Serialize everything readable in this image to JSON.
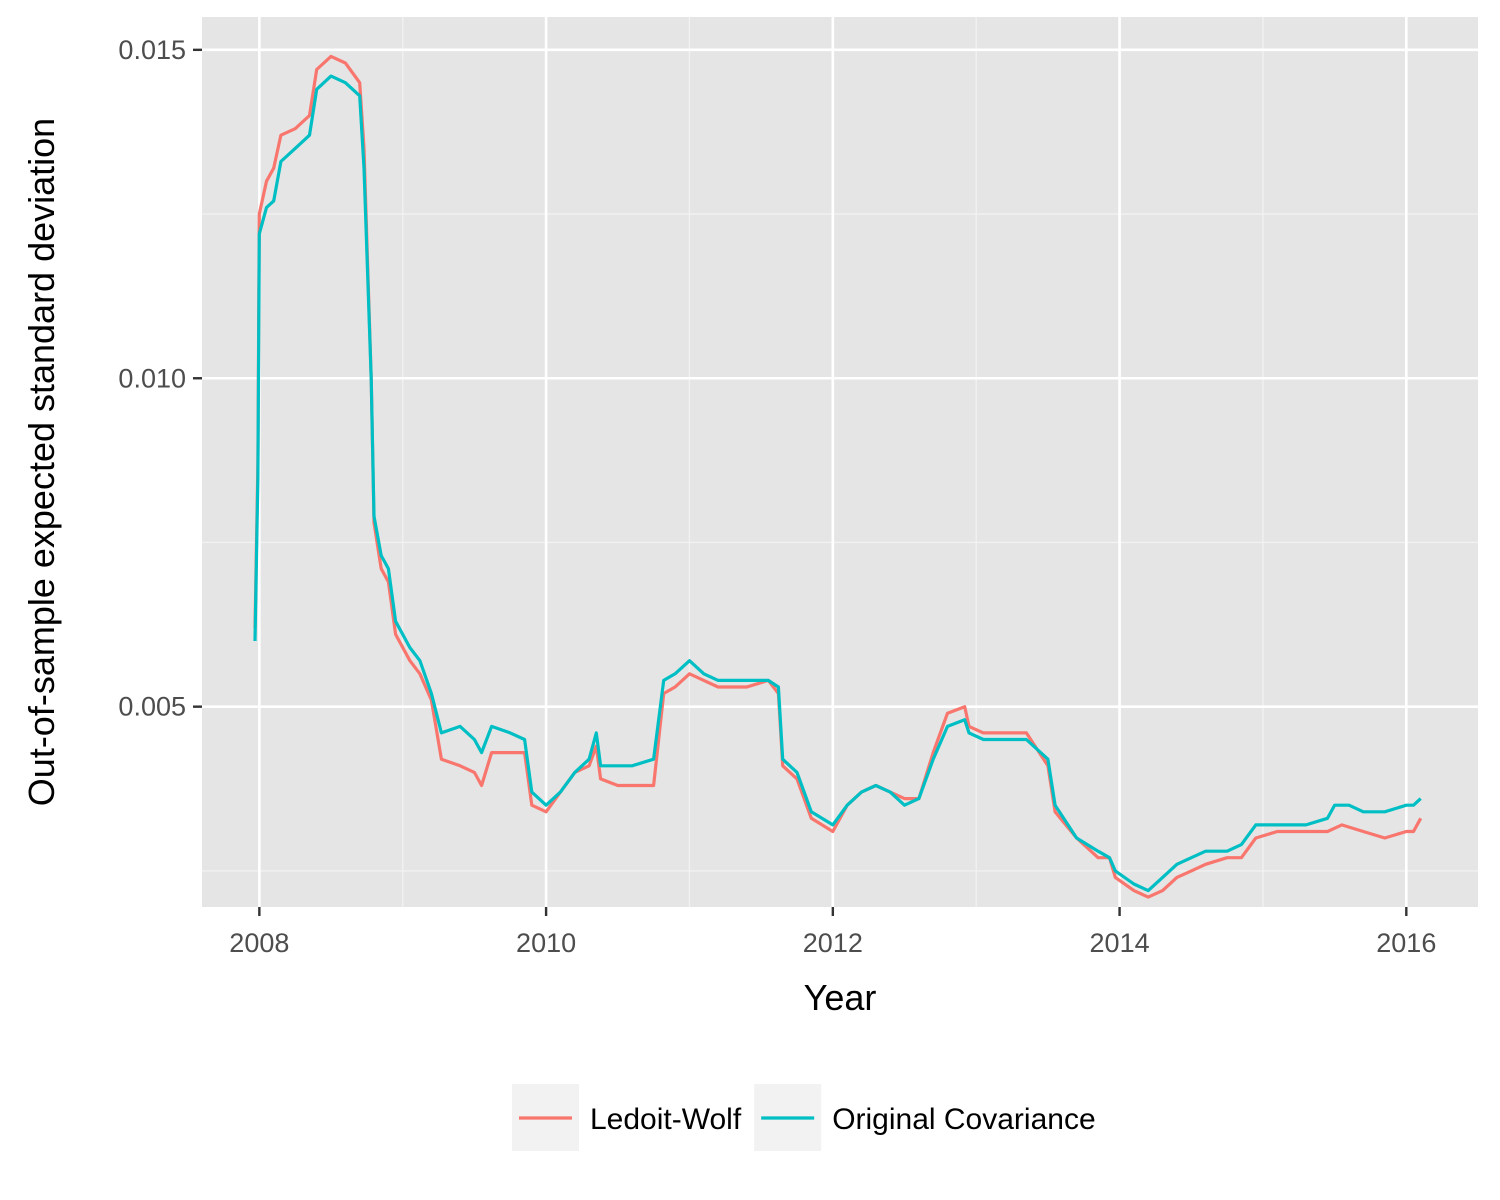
{
  "chart_data": {
    "type": "line",
    "xlabel": "Year",
    "ylabel": "Out-of-sample expected standard deviation",
    "xlim": [
      2007.6,
      2016.5
    ],
    "ylim": [
      0.00195,
      0.0155
    ],
    "x_ticks": [
      2008,
      2010,
      2012,
      2014,
      2016
    ],
    "y_ticks": [
      0.005,
      0.01,
      0.015
    ],
    "x_tick_labels": [
      "2008",
      "2010",
      "2012",
      "2014",
      "2016"
    ],
    "y_tick_labels": [
      "0.005",
      "0.010",
      "0.015"
    ],
    "grid": true,
    "legend_position": "bottom",
    "series": [
      {
        "name": "Ledoit-Wolf",
        "color": "#F8766D",
        "points": [
          [
            2007.97,
            0.0062
          ],
          [
            2007.99,
            0.0087
          ],
          [
            2008.0,
            0.0125
          ],
          [
            2008.05,
            0.013
          ],
          [
            2008.1,
            0.0132
          ],
          [
            2008.15,
            0.0137
          ],
          [
            2008.25,
            0.0138
          ],
          [
            2008.35,
            0.014
          ],
          [
            2008.4,
            0.0147
          ],
          [
            2008.5,
            0.0149
          ],
          [
            2008.6,
            0.0148
          ],
          [
            2008.7,
            0.0145
          ],
          [
            2008.73,
            0.0135
          ],
          [
            2008.78,
            0.01
          ],
          [
            2008.8,
            0.0078
          ],
          [
            2008.85,
            0.0071
          ],
          [
            2008.9,
            0.0069
          ],
          [
            2008.95,
            0.0061
          ],
          [
            2009.05,
            0.0057
          ],
          [
            2009.12,
            0.0055
          ],
          [
            2009.2,
            0.0051
          ],
          [
            2009.27,
            0.0042
          ],
          [
            2009.4,
            0.0041
          ],
          [
            2009.5,
            0.004
          ],
          [
            2009.55,
            0.0038
          ],
          [
            2009.62,
            0.0043
          ],
          [
            2009.75,
            0.0043
          ],
          [
            2009.85,
            0.0043
          ],
          [
            2009.9,
            0.0035
          ],
          [
            2010.0,
            0.0034
          ],
          [
            2010.1,
            0.0037
          ],
          [
            2010.2,
            0.004
          ],
          [
            2010.3,
            0.0041
          ],
          [
            2010.35,
            0.0044
          ],
          [
            2010.38,
            0.0039
          ],
          [
            2010.5,
            0.0038
          ],
          [
            2010.6,
            0.0038
          ],
          [
            2010.75,
            0.0038
          ],
          [
            2010.82,
            0.0052
          ],
          [
            2010.9,
            0.0053
          ],
          [
            2011.0,
            0.0055
          ],
          [
            2011.1,
            0.0054
          ],
          [
            2011.2,
            0.0053
          ],
          [
            2011.4,
            0.0053
          ],
          [
            2011.55,
            0.0054
          ],
          [
            2011.62,
            0.0052
          ],
          [
            2011.65,
            0.0041
          ],
          [
            2011.75,
            0.0039
          ],
          [
            2011.85,
            0.0033
          ],
          [
            2012.0,
            0.0031
          ],
          [
            2012.1,
            0.0035
          ],
          [
            2012.2,
            0.0037
          ],
          [
            2012.3,
            0.0038
          ],
          [
            2012.4,
            0.0037
          ],
          [
            2012.5,
            0.0036
          ],
          [
            2012.6,
            0.0036
          ],
          [
            2012.7,
            0.0043
          ],
          [
            2012.8,
            0.0049
          ],
          [
            2012.92,
            0.005
          ],
          [
            2012.95,
            0.0047
          ],
          [
            2013.05,
            0.0046
          ],
          [
            2013.2,
            0.0046
          ],
          [
            2013.35,
            0.0046
          ],
          [
            2013.5,
            0.0041
          ],
          [
            2013.55,
            0.0034
          ],
          [
            2013.7,
            0.003
          ],
          [
            2013.85,
            0.0027
          ],
          [
            2013.93,
            0.0027
          ],
          [
            2013.97,
            0.0024
          ],
          [
            2014.1,
            0.0022
          ],
          [
            2014.2,
            0.0021
          ],
          [
            2014.3,
            0.0022
          ],
          [
            2014.4,
            0.0024
          ],
          [
            2014.5,
            0.0025
          ],
          [
            2014.6,
            0.0026
          ],
          [
            2014.75,
            0.0027
          ],
          [
            2014.85,
            0.0027
          ],
          [
            2014.95,
            0.003
          ],
          [
            2015.1,
            0.0031
          ],
          [
            2015.3,
            0.0031
          ],
          [
            2015.45,
            0.0031
          ],
          [
            2015.55,
            0.0032
          ],
          [
            2015.7,
            0.0031
          ],
          [
            2015.85,
            0.003
          ],
          [
            2016.0,
            0.0031
          ],
          [
            2016.05,
            0.0031
          ],
          [
            2016.1,
            0.0033
          ]
        ]
      },
      {
        "name": "Original Covariance",
        "color": "#00BFC4",
        "points": [
          [
            2007.97,
            0.006
          ],
          [
            2007.99,
            0.0085
          ],
          [
            2008.0,
            0.0122
          ],
          [
            2008.05,
            0.0126
          ],
          [
            2008.1,
            0.0127
          ],
          [
            2008.15,
            0.0133
          ],
          [
            2008.25,
            0.0135
          ],
          [
            2008.35,
            0.0137
          ],
          [
            2008.4,
            0.0144
          ],
          [
            2008.5,
            0.0146
          ],
          [
            2008.6,
            0.0145
          ],
          [
            2008.7,
            0.0143
          ],
          [
            2008.73,
            0.0132
          ],
          [
            2008.78,
            0.01
          ],
          [
            2008.8,
            0.0079
          ],
          [
            2008.85,
            0.0073
          ],
          [
            2008.9,
            0.0071
          ],
          [
            2008.95,
            0.0063
          ],
          [
            2009.05,
            0.0059
          ],
          [
            2009.12,
            0.0057
          ],
          [
            2009.2,
            0.0052
          ],
          [
            2009.27,
            0.0046
          ],
          [
            2009.4,
            0.0047
          ],
          [
            2009.5,
            0.0045
          ],
          [
            2009.55,
            0.0043
          ],
          [
            2009.62,
            0.0047
          ],
          [
            2009.75,
            0.0046
          ],
          [
            2009.85,
            0.0045
          ],
          [
            2009.9,
            0.0037
          ],
          [
            2010.0,
            0.0035
          ],
          [
            2010.1,
            0.0037
          ],
          [
            2010.2,
            0.004
          ],
          [
            2010.3,
            0.0042
          ],
          [
            2010.35,
            0.0046
          ],
          [
            2010.38,
            0.0041
          ],
          [
            2010.5,
            0.0041
          ],
          [
            2010.6,
            0.0041
          ],
          [
            2010.75,
            0.0042
          ],
          [
            2010.82,
            0.0054
          ],
          [
            2010.9,
            0.0055
          ],
          [
            2011.0,
            0.0057
          ],
          [
            2011.1,
            0.0055
          ],
          [
            2011.2,
            0.0054
          ],
          [
            2011.4,
            0.0054
          ],
          [
            2011.55,
            0.0054
          ],
          [
            2011.62,
            0.0053
          ],
          [
            2011.65,
            0.0042
          ],
          [
            2011.75,
            0.004
          ],
          [
            2011.85,
            0.0034
          ],
          [
            2012.0,
            0.0032
          ],
          [
            2012.1,
            0.0035
          ],
          [
            2012.2,
            0.0037
          ],
          [
            2012.3,
            0.0038
          ],
          [
            2012.4,
            0.0037
          ],
          [
            2012.5,
            0.0035
          ],
          [
            2012.6,
            0.0036
          ],
          [
            2012.7,
            0.0042
          ],
          [
            2012.8,
            0.0047
          ],
          [
            2012.92,
            0.0048
          ],
          [
            2012.95,
            0.0046
          ],
          [
            2013.05,
            0.0045
          ],
          [
            2013.2,
            0.0045
          ],
          [
            2013.35,
            0.0045
          ],
          [
            2013.5,
            0.0042
          ],
          [
            2013.55,
            0.0035
          ],
          [
            2013.7,
            0.003
          ],
          [
            2013.85,
            0.0028
          ],
          [
            2013.93,
            0.0027
          ],
          [
            2013.97,
            0.0025
          ],
          [
            2014.1,
            0.0023
          ],
          [
            2014.2,
            0.0022
          ],
          [
            2014.3,
            0.0024
          ],
          [
            2014.4,
            0.0026
          ],
          [
            2014.5,
            0.0027
          ],
          [
            2014.6,
            0.0028
          ],
          [
            2014.75,
            0.0028
          ],
          [
            2014.85,
            0.0029
          ],
          [
            2014.95,
            0.0032
          ],
          [
            2015.1,
            0.0032
          ],
          [
            2015.3,
            0.0032
          ],
          [
            2015.45,
            0.0033
          ],
          [
            2015.5,
            0.0035
          ],
          [
            2015.6,
            0.0035
          ],
          [
            2015.7,
            0.0034
          ],
          [
            2015.85,
            0.0034
          ],
          [
            2016.0,
            0.0035
          ],
          [
            2016.05,
            0.0035
          ],
          [
            2016.1,
            0.0036
          ]
        ]
      }
    ]
  }
}
